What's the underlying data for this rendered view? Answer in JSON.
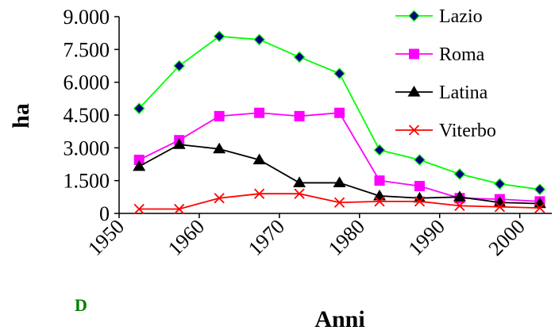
{
  "chart_data": {
    "type": "line",
    "title": "",
    "xlabel": "Anni",
    "ylabel": "ha",
    "xlim": [
      1950,
      2004
    ],
    "ylim": [
      0,
      9000
    ],
    "x_ticks": [
      1950,
      1960,
      1970,
      1980,
      1990,
      2000
    ],
    "x_tick_labels": [
      "1950",
      "1960",
      "1970",
      "1980",
      "1990",
      "2000"
    ],
    "y_ticks": [
      0,
      1500,
      3000,
      4500,
      6000,
      7500,
      9000
    ],
    "y_tick_labels": [
      "0",
      "1.500",
      "3.000",
      "4.500",
      "6.000",
      "7.500",
      "9.000"
    ],
    "x": [
      1952.5,
      1957.5,
      1962.5,
      1967.5,
      1972.5,
      1977.5,
      1982.5,
      1987.5,
      1992.5,
      1997.5,
      2002.5
    ],
    "grid": false,
    "legend_position": "top-right",
    "annotation": "D",
    "annotation_color": "#008000",
    "series": [
      {
        "name": "Lazio",
        "color": "#00ff00",
        "marker": "diamond",
        "marker_fill": "#000080",
        "values": [
          4800,
          6750,
          8100,
          7950,
          7150,
          6400,
          2900,
          2450,
          1800,
          1350,
          1100
        ]
      },
      {
        "name": "Roma",
        "color": "#ff00ff",
        "marker": "square",
        "marker_fill": "#ff00ff",
        "values": [
          2450,
          3350,
          4450,
          4600,
          4450,
          4600,
          1500,
          1250,
          700,
          650,
          550
        ]
      },
      {
        "name": "Latina",
        "color": "#000000",
        "marker": "triangle",
        "marker_fill": "#000000",
        "values": [
          2150,
          3150,
          2950,
          2450,
          1400,
          1400,
          800,
          700,
          750,
          500,
          450
        ]
      },
      {
        "name": "Viterbo",
        "color": "#ff0000",
        "marker": "x",
        "marker_fill": "#ff0000",
        "values": [
          200,
          200,
          700,
          900,
          900,
          500,
          550,
          550,
          350,
          300,
          250
        ]
      }
    ]
  }
}
